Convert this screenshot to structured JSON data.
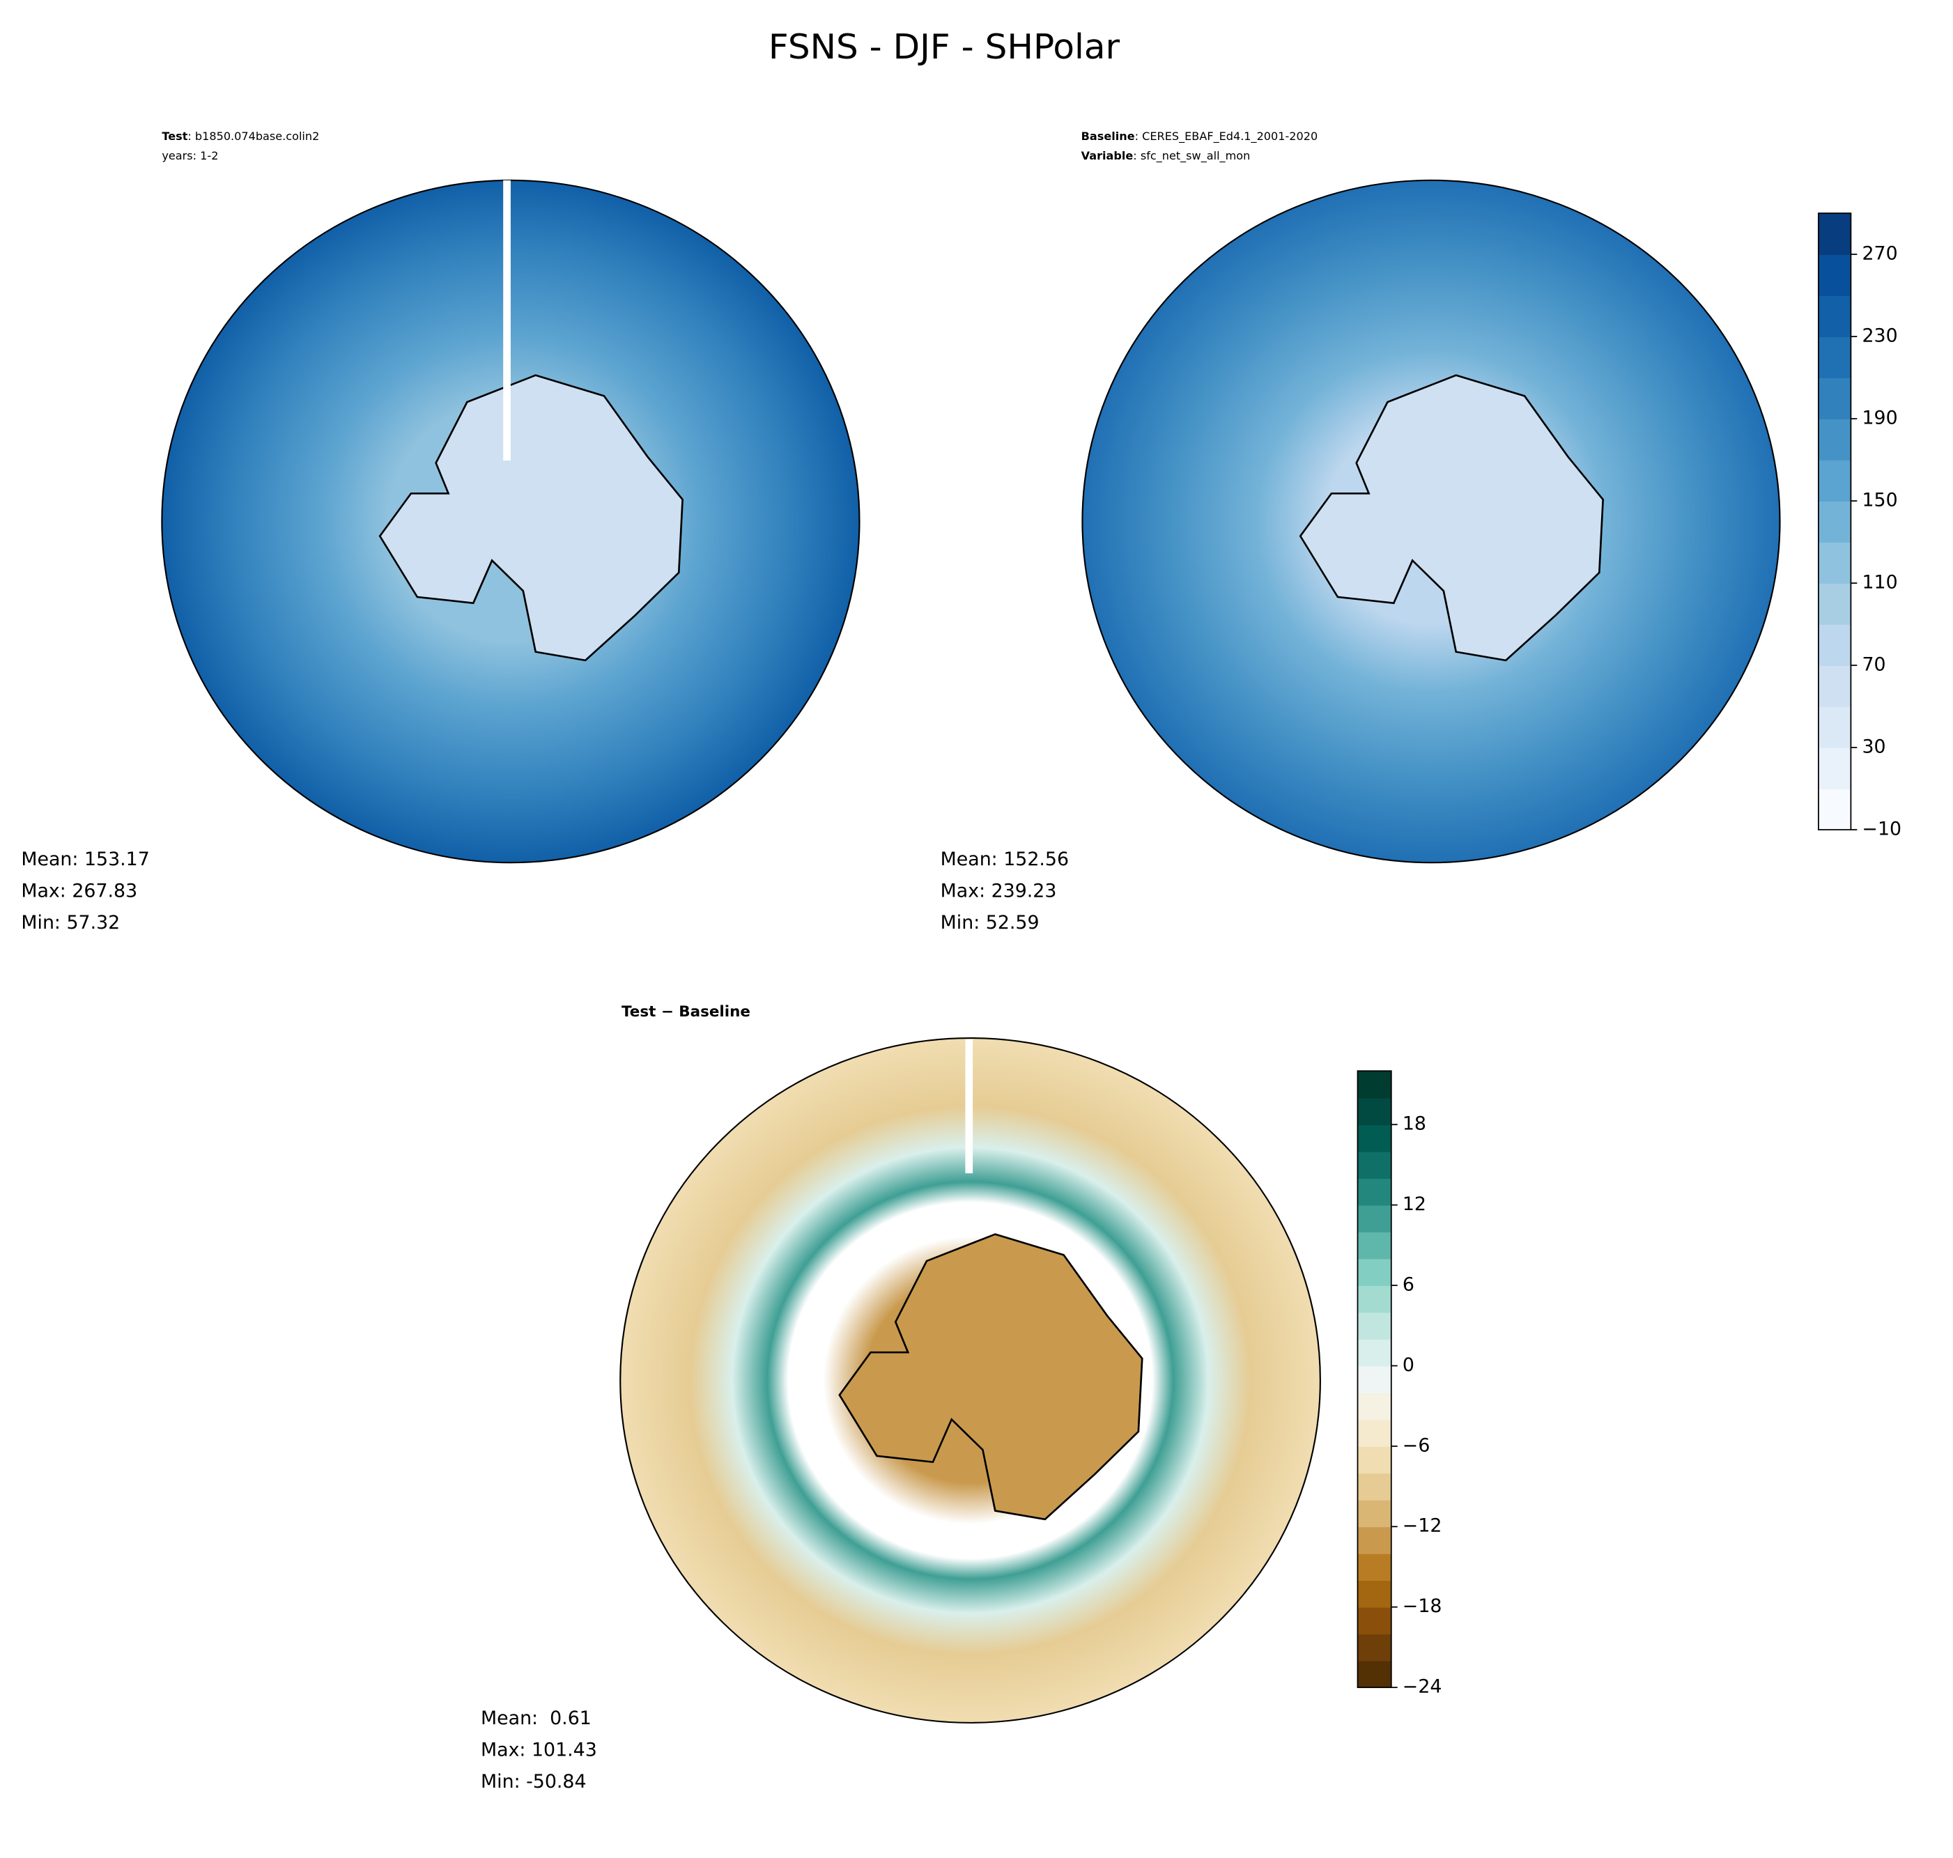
{
  "title": "FSNS - DJF - SHPolar",
  "panels": [
    {
      "header": [
        {
          "key": "Test",
          "text": ": b1850.074base.colin2"
        },
        {
          "text": "years: 1-2"
        }
      ],
      "stats": [
        "Mean: 153.17",
        "Max: 267.83",
        "Min: 57.32"
      ]
    },
    {
      "header": [
        {
          "key": "Baseline",
          "text": ": CERES_EBAF_Ed4.1_2001-2020"
        },
        {
          "key": "Variable",
          "text": ": sfc_net_sw_all_mon"
        }
      ],
      "stats": [
        "Mean: 152.56",
        "Max: 239.23",
        "Min: 52.59"
      ]
    },
    {
      "header": [
        {
          "key": "Test − Baseline"
        }
      ],
      "stats": [
        "Mean:  0.61",
        "Max: 101.43",
        "Min: -50.84"
      ]
    }
  ],
  "colorbars": [
    {
      "lim": [
        -10,
        290
      ],
      "ticks": [
        {
          "value": -10,
          "label": "−10"
        },
        30,
        70,
        110,
        150,
        190,
        230,
        270
      ],
      "colors": [
        "#f7fbff",
        "#e9f2fa",
        "#dbe9f6",
        "#cee0f2",
        "#bdd7ee",
        "#a8cee4",
        "#8fc2de",
        "#74b3d8",
        "#5ba3d0",
        "#4592c6",
        "#3181bd",
        "#2070b4",
        "#1160a8",
        "#08509b",
        "#083d7f"
      ]
    },
    {
      "lim": [
        -24,
        22
      ],
      "ticks": [
        {
          "value": -24,
          "label": "−24"
        },
        {
          "value": -18,
          "label": "−18"
        },
        {
          "value": -12,
          "label": "−12"
        },
        {
          "value": -6,
          "label": "−6"
        },
        0,
        6,
        12,
        18
      ],
      "colors": [
        "#543005",
        "#6f3f09",
        "#8a500b",
        "#a36611",
        "#b87d24",
        "#c99a4e",
        "#d9b674",
        "#e6cc94",
        "#f0ddb1",
        "#f5eacd",
        "#f5f1e3",
        "#eef5f4",
        "#d9efeb",
        "#c1e6df",
        "#a3dbd1",
        "#83cec2",
        "#5fb7ab",
        "#3f9f94",
        "#24877d",
        "#0f7068",
        "#015c53",
        "#014a41",
        "#003c30"
      ]
    }
  ]
}
